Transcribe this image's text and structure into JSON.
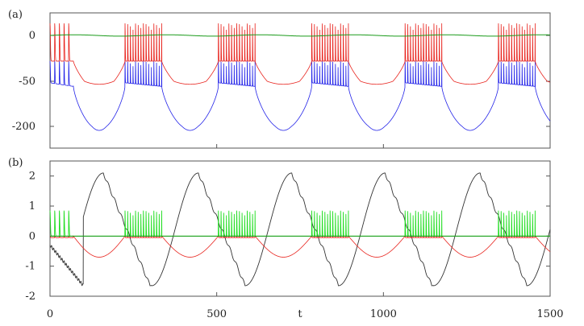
{
  "chart_data": [
    {
      "type": "line",
      "panel_label": "(a)",
      "xlim": [
        0,
        1500
      ],
      "ylim": [
        -250,
        25
      ],
      "y_ticks": [
        0,
        -50,
        -200
      ],
      "y_tick_labels": [
        "0",
        "-50",
        "-200"
      ],
      "grid": false,
      "burst_period": 280,
      "burst_starts": [
        225,
        505,
        785,
        1065,
        1345
      ],
      "burst_duration": 110,
      "series": [
        {
          "key": "a_red",
          "color": "#e8221c",
          "spike_peak": 15,
          "spike_base": -28,
          "quiet_level": -60,
          "description_values": {
            "spike_peak": 15,
            "burst_floor": -28,
            "trough": -60
          }
        },
        {
          "key": "a_blue",
          "color": "#2222e8",
          "spike_peak": -28,
          "spike_base": -55,
          "quiet_level": -210,
          "description_values": {
            "spike_peak": -28,
            "burst_floor": -55,
            "trough": -210
          }
        },
        {
          "key": "a_green",
          "color": "#1a9a1a",
          "level": 0
        }
      ]
    },
    {
      "type": "line",
      "panel_label": "(b)",
      "xlim": [
        0,
        1500
      ],
      "ylim": [
        -2,
        2.5
      ],
      "y_ticks": [
        2,
        1,
        0,
        -1,
        -2
      ],
      "y_tick_labels": [
        "2",
        "1",
        "0",
        "-1",
        "-2"
      ],
      "x_ticks": [
        0,
        500,
        1000,
        1500
      ],
      "x_tick_labels": [
        "0",
        "500",
        "1000",
        "1500"
      ],
      "xlabel": "t",
      "grid": false,
      "series": [
        {
          "key": "b_black",
          "color": "#333333",
          "max": 2.1,
          "min": -1.65
        },
        {
          "key": "b_green",
          "color": "#22dd22",
          "spike_peak": 0.85,
          "spike_base": 0.0
        },
        {
          "key": "b_red",
          "color": "#e8221c",
          "max": 0.0,
          "min": -0.7
        },
        {
          "key": "b_flat_green",
          "color": "#1a9a1a",
          "level": 0
        }
      ]
    }
  ]
}
